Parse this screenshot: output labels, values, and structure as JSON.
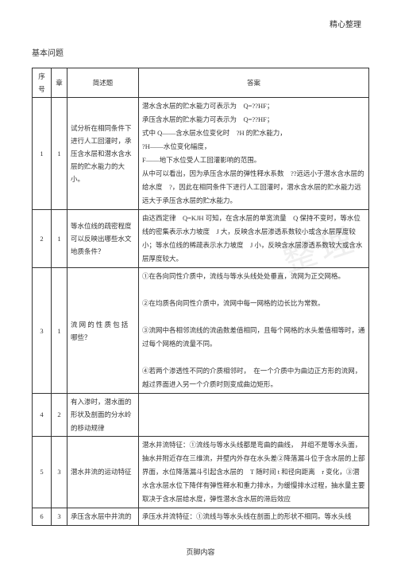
{
  "header": {
    "right": "精心整理"
  },
  "section_title": "基本问题",
  "footer": "页脚内容",
  "watermark": "整理",
  "columns": [
    "序号",
    "章",
    "简述题",
    "答案"
  ],
  "rows": [
    {
      "seq": "1",
      "chapter": "1",
      "question": "试分析在相同条件下进行人工回灌时，承压含水层和潜水含水层的贮水能力的大小。",
      "answer": "潜水含水层的贮水能力可表示为　Q=??HF；\n承压含水层的贮水能力可表示为　Q=??HF；\n式中 Q——含水层水位变化时　?H 的贮水能力，\n?H——水位变化幅度，\nF——地下水位受人工回灌影响的范围。\n从中可以看出，因为承压含水层的弹性释水系数　??远远小于潜水含水层的给水度　?，因此在相同条件下进行人工回灌时，潜水含水层的贮水能力远远大于承压含水层的贮水能力。"
    },
    {
      "seq": "2",
      "chapter": "1",
      "question": "等水位线的疏密程度可以反映出哪些水文地质条件？",
      "answer": "由达西定律　Q=KJH 可知，在含水层的单宽流量　Q 保持不变时，等水位线的密集表示水力坡度　J 大，反映含水层渗透系数较小或含水层厚度较小；等水位线的稀疏表示水力坡度　J 小，反映含水层渗透系数较大或含水层厚度较大。"
    },
    {
      "seq": "3",
      "chapter": "1",
      "question": "流 网 的 性 质 包 括 哪些？",
      "answer": "①在各向同性介质中，流线与等水头线处处垂直，流网为正交网格。\n\n②在均质各向同性介质中，流网中每一网格的边长比为常数。\n\n③流网中各相邻流线的流函数差值相同，且每个网格的水头差值相等时，通过每个网格的流量不同。\n\n④若两个渗透性不同的介质相邻时，　在一个介质中为曲边正方形的流网，越过界面进入另一个介质时则变成曲边矩形。"
    },
    {
      "seq": "4",
      "chapter": "2",
      "question": "有入渗时，潜水面的形状及剖面的分水岭的移动规律",
      "answer": ""
    },
    {
      "seq": "5",
      "chapter": "3",
      "question": "潜水井流的运动特征",
      "answer": "潜水井流特征：①流线与等水头线都是弯曲的曲线，　并组不是等水头面，抽水井附近存在三维流，井壁内外存在水头差②降落漏斗位于含水层的上部界面，水位降落漏斗引起含水层的　T 随时间 t 和径向距离　r 变化，③潜水含水层水位下降伴有弹性释水和重力排水，为缓慢排水过程，抽水量主要取决于含水层给水度，弹性潜水含水层的滞后效应"
    },
    {
      "seq": "6",
      "chapter": "3",
      "question": "承压含水层中井流的",
      "answer": "承压水井流特征：①流线与等水头线在剖面上的形状不相同。等水头线"
    }
  ]
}
